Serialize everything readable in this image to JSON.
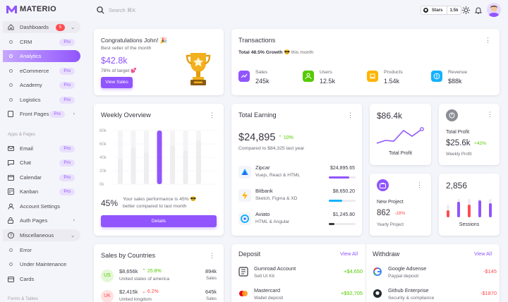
{
  "brand": {
    "name": "MATERIO"
  },
  "sidebar": {
    "dashboards": {
      "label": "Dashboards",
      "badge": "5"
    },
    "items": [
      {
        "label": "CRM",
        "pill": "Pro"
      },
      {
        "label": "Analytics"
      },
      {
        "label": "eCommerce",
        "pill": "Pro"
      },
      {
        "label": "Academy",
        "pill": "Pro"
      },
      {
        "label": "Logistics",
        "pill": "Pro"
      }
    ],
    "front_pages": {
      "label": "Front Pages",
      "pill": "Pro"
    },
    "section1": "Apps & Pages",
    "apps": [
      {
        "label": "Email",
        "pill": "Pro"
      },
      {
        "label": "Chat",
        "pill": "Pro"
      },
      {
        "label": "Calendar",
        "pill": "Pro"
      },
      {
        "label": "Kanban",
        "pill": "Pro"
      }
    ],
    "account": "Account Settings",
    "auth": "Auth Pages",
    "misc": "Miscellaneous",
    "misc_items": [
      "Error",
      "Under Maintenance"
    ],
    "cards": "Cards",
    "section2": "Forms & Tables"
  },
  "topbar": {
    "search_placeholder": "Search ⌘K",
    "stars_label": "Stars",
    "stars_count": "1.5k"
  },
  "congrats": {
    "title": "Congratulations John! 🎉",
    "subtitle": "Best seller of the month",
    "amount": "$42.8k",
    "target": "78% of target 💕",
    "button": "View Sales"
  },
  "transactions": {
    "title": "Transactions",
    "growth_bold": "Total 48.5% Growth",
    "growth_rest": "😎 this month",
    "stats": [
      {
        "label": "Sales",
        "value": "245k",
        "color": "#9155fd",
        "icon": "trending-up-icon"
      },
      {
        "label": "Users",
        "value": "12.5k",
        "color": "#56ca00",
        "icon": "users-icon"
      },
      {
        "label": "Products",
        "value": "1.54k",
        "color": "#ffb400",
        "icon": "laptop-icon"
      },
      {
        "label": "Revenue",
        "value": "$88k",
        "color": "#16b1ff",
        "icon": "dollar-icon"
      }
    ]
  },
  "weekly": {
    "title": "Weekly Overview",
    "percent": "45%",
    "text1": "Your sales performance is 45% 😎",
    "text2": "better compared to last month",
    "button": "Details"
  },
  "chart_data": {
    "type": "bar",
    "categories": [
      "",
      "",
      "",
      "",
      "",
      "",
      ""
    ],
    "values": [
      38,
      55,
      48,
      80,
      58,
      50,
      65
    ],
    "highlight_index": 3,
    "yticks": [
      "80k",
      "60k",
      "40k",
      "20k",
      "0k"
    ],
    "ylim": [
      0,
      80
    ]
  },
  "earning": {
    "title": "Total Earning",
    "amount": "$24,895",
    "change": "10%",
    "compare": "Compared to $84,325 last year",
    "rows": [
      {
        "name": "Zipcar",
        "desc": "Vuejs, React & HTML",
        "amount": "$24,895.65",
        "progress": 0.75,
        "color": "#9155fd",
        "icon": "zipcar-logo-icon"
      },
      {
        "name": "Bitbank",
        "desc": "Sketch, Figma & XD",
        "amount": "$8,650.20",
        "progress": 0.5,
        "color": "#16b1ff",
        "icon": "bitbank-logo-icon"
      },
      {
        "name": "Aviato",
        "desc": "HTML & Angular",
        "amount": "$1,245.80",
        "progress": 0.2,
        "color": "#3a3541",
        "icon": "aviato-logo-icon"
      }
    ]
  },
  "profit_chart": {
    "value": "$86.4k",
    "label": "Total Profit"
  },
  "total_profit": {
    "title": "Total Profit",
    "value": "$25.6k",
    "change": "+42%",
    "sub": "Weekly Profit"
  },
  "new_project": {
    "title": "New Project",
    "value": "862",
    "change": "-18%",
    "sub": "Yearly Project"
  },
  "sessions": {
    "value": "2,856",
    "label": "Sessions"
  },
  "countries": {
    "title": "Sales by Countries",
    "rows": [
      {
        "code": "US",
        "amount": "$8,656k",
        "change": "25.8%",
        "dir": "up",
        "country": "United states of america",
        "sales": "894k",
        "sales_label": "Sales",
        "bg": "#e4f7d6",
        "fg": "#56ca00"
      },
      {
        "code": "UK",
        "amount": "$2,415k",
        "change": "6.2%",
        "dir": "down",
        "country": "United kingdom",
        "sales": "645k",
        "sales_label": "Sales",
        "bg": "#ffe2e3",
        "fg": "#ff4c51"
      }
    ]
  },
  "deposit": {
    "title": "Deposit",
    "view_all": "View All",
    "rows": [
      {
        "name": "Gumroad Account",
        "desc": "Sell UI Kit",
        "amount": "+$4,650",
        "icon": "gumroad-logo-icon"
      },
      {
        "name": "Mastercard",
        "desc": "Wallet deposit",
        "amount": "+$92,705",
        "icon": "mastercard-logo-icon"
      }
    ]
  },
  "withdraw": {
    "title": "Withdraw",
    "view_all": "View All",
    "rows": [
      {
        "name": "Google Adsense",
        "desc": "Paypal deposit",
        "amount": "-$145",
        "icon": "google-logo-icon"
      },
      {
        "name": "Github Enterprise",
        "desc": "Security & compliance",
        "amount": "-$1870",
        "icon": "github-logo-icon"
      }
    ]
  }
}
